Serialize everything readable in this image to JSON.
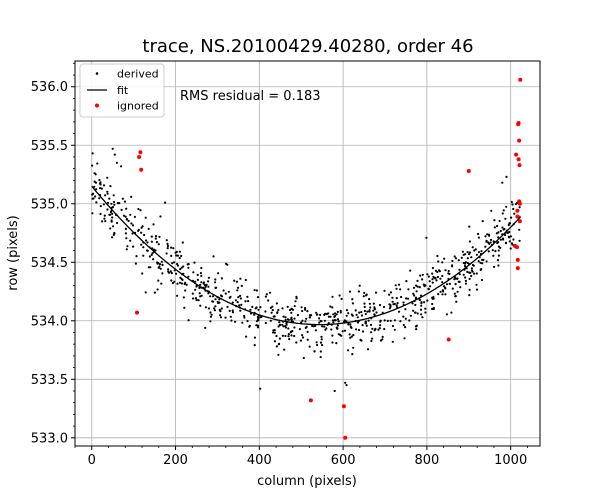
{
  "chart_data": {
    "type": "scatter",
    "title": "trace, NS.20100429.40280, order 46",
    "xlabel": "column (pixels)",
    "ylabel": "row (pixels)",
    "xlim": [
      -40,
      1070
    ],
    "ylim": [
      532.93,
      536.22
    ],
    "xticks": [
      0,
      200,
      400,
      600,
      800,
      1000
    ],
    "yticks": [
      533.0,
      533.5,
      534.0,
      534.5,
      535.0,
      535.5,
      536.0
    ],
    "xtick_labels": [
      "0",
      "200",
      "400",
      "600",
      "800",
      "1000"
    ],
    "ytick_labels": [
      "533.0",
      "533.5",
      "534.0",
      "534.5",
      "535.0",
      "535.5",
      "536.0"
    ],
    "grid": true,
    "legend": "top-left",
    "annotation": "RMS residual = 0.183",
    "fit": {
      "name": "fit",
      "color": "#000000",
      "coefficients": [
        535.15,
        -0.00435,
        4e-06
      ],
      "x_range": [
        0,
        1024
      ]
    },
    "derived": {
      "name": "derived",
      "color": "#000000",
      "count": 900,
      "x_range": [
        0,
        1024
      ],
      "noise_std": 0.12,
      "highlights": [
        {
          "x": 2,
          "y": 535.43
        },
        {
          "x": 50,
          "y": 535.47
        },
        {
          "x": 55,
          "y": 535.42
        },
        {
          "x": 70,
          "y": 535.32
        },
        {
          "x": 175,
          "y": 535.01
        },
        {
          "x": 60,
          "y": 535.35
        },
        {
          "x": 402,
          "y": 533.42
        },
        {
          "x": 580,
          "y": 533.4
        },
        {
          "x": 605,
          "y": 533.47
        },
        {
          "x": 608,
          "y": 533.45
        },
        {
          "x": 990,
          "y": 535.23
        },
        {
          "x": 980,
          "y": 535.18
        }
      ]
    },
    "ignored": {
      "name": "ignored",
      "color": "#ff0000",
      "points": [
        {
          "x": 108,
          "y": 534.07
        },
        {
          "x": 113,
          "y": 535.4
        },
        {
          "x": 116,
          "y": 535.44
        },
        {
          "x": 118,
          "y": 535.29
        },
        {
          "x": 523,
          "y": 533.32
        },
        {
          "x": 602,
          "y": 533.27
        },
        {
          "x": 605,
          "y": 533.0
        },
        {
          "x": 852,
          "y": 533.84
        },
        {
          "x": 900,
          "y": 535.28
        },
        {
          "x": 1010,
          "y": 534.64
        },
        {
          "x": 1013,
          "y": 535.42
        },
        {
          "x": 1015,
          "y": 534.63
        },
        {
          "x": 1016,
          "y": 534.94
        },
        {
          "x": 1016,
          "y": 534.89
        },
        {
          "x": 1017,
          "y": 534.52
        },
        {
          "x": 1017,
          "y": 534.45
        },
        {
          "x": 1018,
          "y": 535.68
        },
        {
          "x": 1019,
          "y": 535.69
        },
        {
          "x": 1019,
          "y": 535.38
        },
        {
          "x": 1020,
          "y": 535.54
        },
        {
          "x": 1020,
          "y": 535.02
        },
        {
          "x": 1021,
          "y": 535.33
        },
        {
          "x": 1022,
          "y": 534.85
        },
        {
          "x": 1023,
          "y": 536.06
        },
        {
          "x": 1022,
          "y": 535.0
        }
      ]
    }
  }
}
